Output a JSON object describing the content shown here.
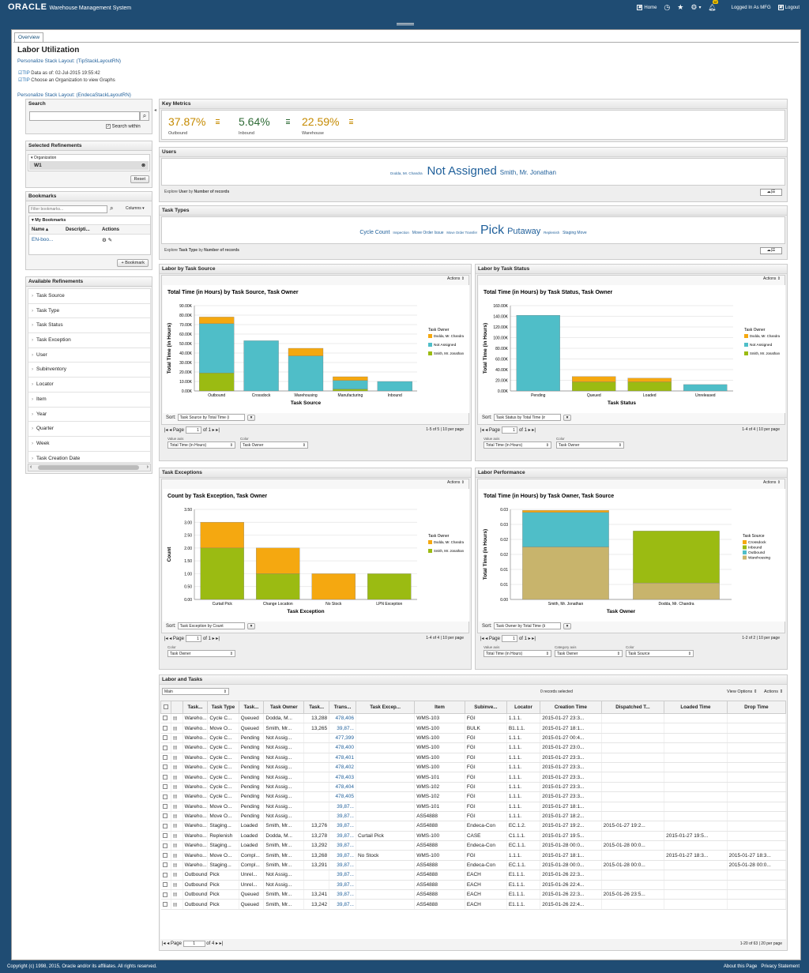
{
  "header": {
    "logo": "ORACLE",
    "app": "Warehouse Management System",
    "home": "Home",
    "notif_count": "57",
    "logged_in": "Logged In As MFG",
    "logout": "Logout"
  },
  "tab": "Overview",
  "page": {
    "title": "Labor Utilization",
    "personalize1": "Personalize Stack Layout: (TipStackLayoutRN)",
    "tip1_label": "TIP",
    "tip1": "Data as of: 02-Jul-2015 19:55:42",
    "tip2_label": "TIP",
    "tip2": "Choose an Organization to view Graphs",
    "personalize2": "Personalize Stack Layout: (EndecaStackLayoutRN)"
  },
  "search": {
    "title": "Search",
    "within": "Search within"
  },
  "refinements": {
    "title": "Selected Refinements",
    "org_label": "Organization",
    "org_value": "W1",
    "reset": "Reset"
  },
  "bookmarks": {
    "title": "Bookmarks",
    "placeholder": "Filter bookmarks...",
    "columns": "Columns",
    "my": "My Bookmarks",
    "cols": [
      "Name",
      "Descripti...",
      "Actions"
    ],
    "item": "EN-boo...",
    "add": "Bookmark"
  },
  "available": {
    "title": "Available Refinements",
    "items": [
      "Task Source",
      "Task Type",
      "Task Status",
      "Task Exception",
      "User",
      "Subinventory",
      "Locator",
      "Item",
      "Year",
      "Quarter",
      "Week",
      "Task Creation Date"
    ]
  },
  "metrics": {
    "title": "Key Metrics",
    "items": [
      {
        "value": "37.87%",
        "label": "Outbound",
        "color": "#c58a00"
      },
      {
        "value": "5.64%",
        "label": "Inbound",
        "color": "#2f6b36"
      },
      {
        "value": "22.59%",
        "label": "Warehouse",
        "color": "#c58a00"
      }
    ]
  },
  "users": {
    "title": "Users",
    "small": "Dodda, Mr. Chandra",
    "big": "Not Assigned",
    "mid": "Smith, Mr. Jonathan",
    "explore": "Explore",
    "explore_what": "User",
    "by": "by",
    "by_what": "Number of records"
  },
  "tasktypes": {
    "title": "Task Types",
    "t1": "Cycle Count",
    "t2": "Inspection",
    "t3": "Move Order Issue",
    "t4": "Move Order Transfer",
    "t5": "Pick",
    "t6": "Putaway",
    "t7": "Replenish",
    "t8": "Staging Move",
    "explore": "Explore",
    "explore_what": "Task Type",
    "by": "by",
    "by_what": "Number of records"
  },
  "common": {
    "actions": "Actions",
    "sort": "Sort:",
    "page": "Page",
    "value_axis": "Value axis",
    "color": "Color",
    "category_axis": "Category axis",
    "legend_title_owner": "Task Owner",
    "legend_title_source": "Task Source"
  },
  "chart_data": [
    {
      "panel": "Labor by Task Source",
      "type": "bar",
      "stacked": true,
      "title": "Total Time (in Hours) by Task Source, Task Owner",
      "xlabel": "Task Source",
      "ylabel": "Total Time (in Hours)",
      "categories": [
        "Outbound",
        "Crossdock",
        "Warehousing",
        "Manufacturing",
        "Inbound"
      ],
      "ticks": [
        "0.00K",
        "10.00K",
        "20.00K",
        "30.00K",
        "40.00K",
        "50.00K",
        "60.00K",
        "70.00K",
        "80.00K",
        "90.00K"
      ],
      "ylim": [
        0,
        90
      ],
      "series": [
        {
          "name": "Smith, Mr. Jonathan",
          "color": "#9bbb12",
          "values": [
            19,
            0,
            0,
            2,
            0
          ]
        },
        {
          "name": "Not Assigned",
          "color": "#4fbec8",
          "values": [
            52,
            53,
            37,
            9,
            10
          ]
        },
        {
          "name": "Dodda, Mr. Chandra",
          "color": "#f5a810",
          "values": [
            7,
            0,
            8,
            4,
            0
          ]
        }
      ],
      "legend": [
        "Dodda, Mr. Chandra",
        "Not Assigned",
        "Smith, Mr. Jonathan"
      ],
      "sort": "Task Source by Total Time (i",
      "page_of": "1",
      "range": "1-5 of 5",
      "perpage": "10 per page",
      "ctrl1": "Total Time (in Hours)",
      "ctrl2": "Task Owner"
    },
    {
      "panel": "Labor by Task Status",
      "type": "bar",
      "stacked": true,
      "title": "Total Time (in Hours) by Task Status, Task Owner",
      "xlabel": "Task Status",
      "ylabel": "Total Time (in Hours)",
      "categories": [
        "Pending",
        "Queued",
        "Loaded",
        "Unreleased"
      ],
      "ticks": [
        "0.00K",
        "20.00K",
        "40.00K",
        "60.00K",
        "80.00K",
        "100.00K",
        "120.00K",
        "140.00K",
        "160.00K"
      ],
      "ylim": [
        0,
        160
      ],
      "series": [
        {
          "name": "Smith, Mr. Jonathan",
          "color": "#9bbb12",
          "values": [
            0,
            17,
            17,
            0
          ]
        },
        {
          "name": "Not Assigned",
          "color": "#4fbec8",
          "values": [
            142,
            0,
            0,
            12
          ]
        },
        {
          "name": "Dodda, Mr. Chandra",
          "color": "#f5a810",
          "values": [
            0,
            10,
            7,
            0
          ]
        }
      ],
      "legend": [
        "Dodda, Mr. Chandra",
        "Not Assigned",
        "Smith, Mr. Jonathan"
      ],
      "sort": "Task Status by Total Time (ir",
      "page_of": "1",
      "range": "1-4 of 4",
      "perpage": "10 per page",
      "ctrl1": "Total Time (in Hours)",
      "ctrl2": "Task Owner"
    },
    {
      "panel": "Task Exceptions",
      "type": "bar",
      "stacked": true,
      "title": "Count by Task Exception, Task Owner",
      "xlabel": "Task Exception",
      "ylabel": "Count",
      "categories": [
        "Curtail Pick",
        "Change Location",
        "No Stock",
        "LPN Exception"
      ],
      "ticks": [
        "0.00",
        "0.50",
        "1.00",
        "1.50",
        "2.00",
        "2.50",
        "3.00",
        "3.50"
      ],
      "ylim": [
        0,
        3.5
      ],
      "series": [
        {
          "name": "Smith, Mr. Jonathan",
          "color": "#9bbb12",
          "values": [
            2,
            1,
            0,
            1
          ]
        },
        {
          "name": "Dodda, Mr. Chandra",
          "color": "#f5a810",
          "values": [
            1,
            1,
            1,
            0
          ]
        }
      ],
      "legend": [
        "Dodda, Mr. Chandra",
        "Smith, Mr. Jonathan"
      ],
      "sort": "Task Exception by Count",
      "page_of": "1",
      "range": "1-4 of 4",
      "perpage": "10 per page",
      "ctrl2": "Task Owner"
    },
    {
      "panel": "Labor Performance",
      "type": "bar",
      "stacked": true,
      "title": "Total Time (in Hours) by Task Owner, Task Source",
      "xlabel": "Task Owner",
      "ylabel": "Total Time (in Hours)",
      "categories": [
        "Smith, Mr. Jonathan",
        "Dodda, Mr. Chandra"
      ],
      "ticks": [
        "0.00",
        "0.01",
        "0.01",
        "0.02",
        "0.02",
        "0.03",
        "0.03"
      ],
      "ylim": [
        0,
        0.03
      ],
      "series": [
        {
          "name": "Warehousing",
          "color": "#c8b46c",
          "values": [
            0.0175,
            0.0055
          ]
        },
        {
          "name": "Outbound",
          "color": "#4fbec8",
          "values": [
            0.0115,
            0
          ]
        },
        {
          "name": "Inbound",
          "color": "#9bbb12",
          "values": [
            0,
            0.0173
          ]
        },
        {
          "name": "Crossdock",
          "color": "#f5a810",
          "values": [
            0.0007,
            0
          ]
        }
      ],
      "legend": [
        "Crossdock",
        "Inbound",
        "Outbound",
        "Warehousing"
      ],
      "sort": "Task Owner by Total Time (ii",
      "page_of": "1",
      "range": "1-2 of 2",
      "perpage": "10 per page",
      "ctrl1": "Total Time (in Hours)",
      "ctrl2": "Task Owner",
      "ctrl3": "Task Source"
    }
  ],
  "table": {
    "title": "Labor and Tasks",
    "view": "Main",
    "selected": "0 records selected",
    "view_options": "View Options",
    "actions": "Actions",
    "columns": [
      "Task...",
      "Task Type",
      "Task...",
      "Task Owner",
      "Task...",
      "Trans...",
      "Task Excep...",
      "Item",
      "Subinve...",
      "Locator",
      "Creation Time",
      "Dispatched T...",
      "Loaded Time",
      "Drop Time"
    ],
    "rows": [
      [
        "Wareho...",
        "Cycle C...",
        "Queued",
        "Dodda, M...",
        "13,288",
        "478,406",
        "",
        "WMS-103",
        "FGI",
        "1.1.1.",
        "2015-01-27 23:3...",
        "",
        "",
        ""
      ],
      [
        "Wareho...",
        "Move O...",
        "Queued",
        "Smith, Mr...",
        "13,265",
        "39,87...",
        "",
        "WMS-100",
        "BULK",
        "B1.1.1.",
        "2015-01-27 18:1...",
        "",
        "",
        ""
      ],
      [
        "Wareho...",
        "Cycle C...",
        "Pending",
        "Not Assig...",
        "",
        "477,399",
        "",
        "WMS-100",
        "FGI",
        "1.1.1.",
        "2015-01-27 00:4...",
        "",
        "",
        ""
      ],
      [
        "Wareho...",
        "Cycle C...",
        "Pending",
        "Not Assig...",
        "",
        "478,400",
        "",
        "WMS-100",
        "FGI",
        "1.1.1.",
        "2015-01-27 23:0...",
        "",
        "",
        ""
      ],
      [
        "Wareho...",
        "Cycle C...",
        "Pending",
        "Not Assig...",
        "",
        "478,401",
        "",
        "WMS-100",
        "FGI",
        "1.1.1.",
        "2015-01-27 23:3...",
        "",
        "",
        ""
      ],
      [
        "Wareho...",
        "Cycle C...",
        "Pending",
        "Not Assig...",
        "",
        "478,402",
        "",
        "WMS-100",
        "FGI",
        "1.1.1.",
        "2015-01-27 23:3...",
        "",
        "",
        ""
      ],
      [
        "Wareho...",
        "Cycle C...",
        "Pending",
        "Not Assig...",
        "",
        "478,403",
        "",
        "WMS-101",
        "FGI",
        "1.1.1.",
        "2015-01-27 23:3...",
        "",
        "",
        ""
      ],
      [
        "Wareho...",
        "Cycle C...",
        "Pending",
        "Not Assig...",
        "",
        "478,404",
        "",
        "WMS-102",
        "FGI",
        "1.1.1.",
        "2015-01-27 23:3...",
        "",
        "",
        ""
      ],
      [
        "Wareho...",
        "Cycle C...",
        "Pending",
        "Not Assig...",
        "",
        "478,405",
        "",
        "WMS-102",
        "FGI",
        "1.1.1.",
        "2015-01-27 23:3...",
        "",
        "",
        ""
      ],
      [
        "Wareho...",
        "Move O...",
        "Pending",
        "Not Assig...",
        "",
        "39,87...",
        "",
        "WMS-101",
        "FGI",
        "1.1.1.",
        "2015-01-27 18:1...",
        "",
        "",
        ""
      ],
      [
        "Wareho...",
        "Move O...",
        "Pending",
        "Not Assig...",
        "",
        "39,87...",
        "",
        "AS54888",
        "FGI",
        "1.1.1.",
        "2015-01-27 18:2...",
        "",
        "",
        ""
      ],
      [
        "Wareho...",
        "Staging...",
        "Loaded",
        "Smith, Mr...",
        "13,276",
        "39,87...",
        "",
        "AS54888",
        "Endeca-Con",
        "EC.1.2.",
        "2015-01-27 19:2...",
        "2015-01-27 19:2...",
        "",
        ""
      ],
      [
        "Wareho...",
        "Replenish",
        "Loaded",
        "Dodda, M...",
        "13,278",
        "39,87...",
        "Curtail Pick",
        "WMS-100",
        "CASE",
        "C1.1.1.",
        "2015-01-27 19:5...",
        "",
        "2015-01-27 19:5...",
        ""
      ],
      [
        "Wareho...",
        "Staging...",
        "Loaded",
        "Smith, Mr...",
        "13,292",
        "39,87...",
        "",
        "AS54888",
        "Endeca-Con",
        "EC.1.1.",
        "2015-01-28 00:0...",
        "2015-01-28 00:0...",
        "",
        ""
      ],
      [
        "Wareho...",
        "Move O...",
        "Compl...",
        "Smith, Mr...",
        "13,268",
        "39,87...",
        "No Stock",
        "WMS-100",
        "FGI",
        "1.1.1.",
        "2015-01-27 18:1...",
        "",
        "2015-01-27 18:3...",
        "2015-01-27 18:3..."
      ],
      [
        "Wareho...",
        "Staging...",
        "Compl...",
        "Smith, Mr...",
        "13,291",
        "39,87...",
        "",
        "AS54888",
        "Endeca-Con",
        "EC.1.1.",
        "2015-01-28 00:0...",
        "2015-01-28 00:0...",
        "",
        "2015-01-28 00:0..."
      ],
      [
        "Outbound",
        "Pick",
        "Unrel...",
        "Not Assig...",
        "",
        "39,87...",
        "",
        "AS54888",
        "EACH",
        "E1.1.1.",
        "2015-01-26 22:3...",
        "",
        "",
        ""
      ],
      [
        "Outbound",
        "Pick",
        "Unrel...",
        "Not Assig...",
        "",
        "39,87...",
        "",
        "AS54888",
        "EACH",
        "E1.1.1.",
        "2015-01-26 22:4...",
        "",
        "",
        ""
      ],
      [
        "Outbound",
        "Pick",
        "Queued",
        "Smith, Mr...",
        "13,241",
        "39,87...",
        "",
        "AS54888",
        "EACH",
        "E1.1.1.",
        "2015-01-26 22:3...",
        "2015-01-26 23:5...",
        "",
        ""
      ],
      [
        "Outbound",
        "Pick",
        "Queued",
        "Smith, Mr...",
        "13,242",
        "39,87...",
        "",
        "AS54888",
        "EACH",
        "E1.1.1.",
        "2015-01-26 22:4...",
        "",
        "",
        ""
      ]
    ],
    "page_label": "Page",
    "page_num": "1",
    "page_of": "of 4",
    "range": "1-20 of 63",
    "perpage": "20 per page"
  },
  "footer": {
    "copyright": "Copyright (c) 1998, 2015, Oracle and/or its affiliates. All rights reserved.",
    "about": "About this Page",
    "privacy": "Privacy Statement"
  }
}
